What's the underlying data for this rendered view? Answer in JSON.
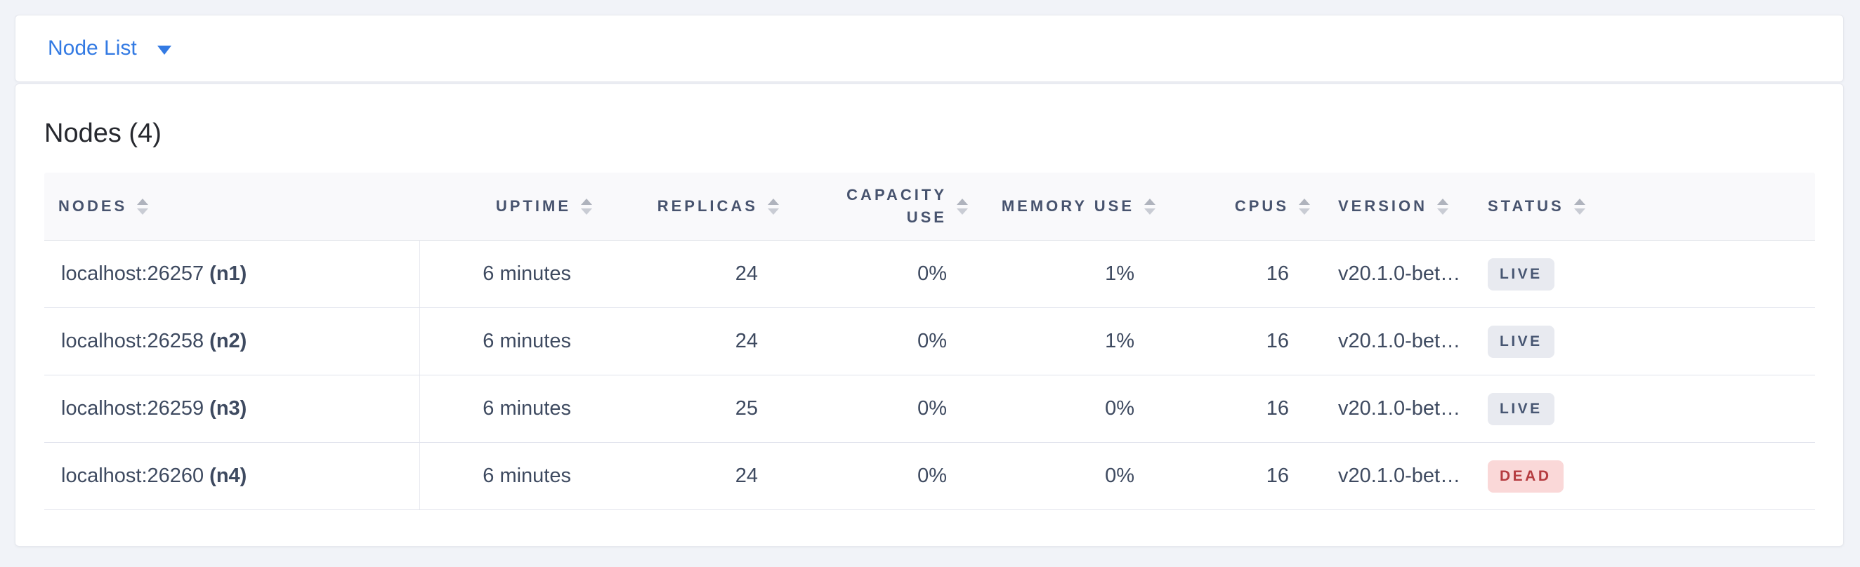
{
  "toolbar": {
    "dropdown_label": "Node List"
  },
  "summary": {
    "title": "Nodes (4)"
  },
  "colors": {
    "accent": "#337ae3",
    "status": {
      "LIVE": {
        "bg": "#e8eaf0",
        "fg": "#475672"
      },
      "DEAD": {
        "bg": "#fad8d8",
        "fg": "#b53c40"
      }
    }
  },
  "table": {
    "columns": [
      {
        "key": "nodes",
        "label": "NODES",
        "align": "left"
      },
      {
        "key": "uptime",
        "label": "UPTIME",
        "align": "right"
      },
      {
        "key": "replicas",
        "label": "REPLICAS",
        "align": "right"
      },
      {
        "key": "capacity_use",
        "label": "CAPACITY USE",
        "align": "right"
      },
      {
        "key": "memory_use",
        "label": "MEMORY USE",
        "align": "right"
      },
      {
        "key": "cpus",
        "label": "CPUS",
        "align": "right"
      },
      {
        "key": "version",
        "label": "VERSION",
        "align": "left"
      },
      {
        "key": "status",
        "label": "STATUS",
        "align": "left"
      }
    ],
    "rows": [
      {
        "address": "localhost:26257",
        "node_id": "(n1)",
        "uptime": "6 minutes",
        "replicas": "24",
        "capacity_use": "0%",
        "memory_use": "1%",
        "cpus": "16",
        "version": "v20.1.0-bet…",
        "status": "LIVE"
      },
      {
        "address": "localhost:26258",
        "node_id": "(n2)",
        "uptime": "6 minutes",
        "replicas": "24",
        "capacity_use": "0%",
        "memory_use": "1%",
        "cpus": "16",
        "version": "v20.1.0-bet…",
        "status": "LIVE"
      },
      {
        "address": "localhost:26259",
        "node_id": "(n3)",
        "uptime": "6 minutes",
        "replicas": "25",
        "capacity_use": "0%",
        "memory_use": "0%",
        "cpus": "16",
        "version": "v20.1.0-bet…",
        "status": "LIVE"
      },
      {
        "address": "localhost:26260",
        "node_id": "(n4)",
        "uptime": "6 minutes",
        "replicas": "24",
        "capacity_use": "0%",
        "memory_use": "0%",
        "cpus": "16",
        "version": "v20.1.0-bet…",
        "status": "DEAD"
      }
    ]
  }
}
